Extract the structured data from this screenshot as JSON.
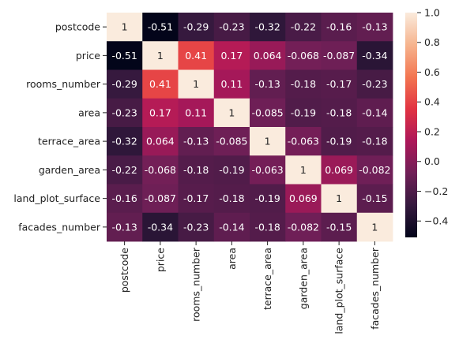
{
  "chart_data": {
    "type": "heatmap",
    "title": "",
    "xlabel": "",
    "ylabel": "",
    "rows": [
      "postcode",
      "price",
      "rooms_number",
      "area",
      "terrace_area",
      "garden_area",
      "land_plot_surface",
      "facades_number"
    ],
    "columns": [
      "postcode",
      "price",
      "rooms_number",
      "area",
      "terrace_area",
      "garden_area",
      "land_plot_surface",
      "facades_number"
    ],
    "values": [
      [
        1,
        -0.51,
        -0.29,
        -0.23,
        -0.32,
        -0.22,
        -0.16,
        -0.13
      ],
      [
        -0.51,
        1,
        0.41,
        0.17,
        0.064,
        -0.068,
        -0.087,
        -0.34
      ],
      [
        -0.29,
        0.41,
        1,
        0.11,
        -0.13,
        -0.18,
        -0.17,
        -0.23
      ],
      [
        -0.23,
        0.17,
        0.11,
        1,
        -0.085,
        -0.19,
        -0.18,
        -0.14
      ],
      [
        -0.32,
        0.064,
        -0.13,
        -0.085,
        1,
        -0.063,
        -0.19,
        -0.18
      ],
      [
        -0.22,
        -0.068,
        -0.18,
        -0.19,
        -0.063,
        1,
        0.069,
        -0.082
      ],
      [
        -0.16,
        -0.087,
        -0.17,
        -0.18,
        -0.19,
        0.069,
        1,
        -0.15
      ],
      [
        -0.13,
        -0.34,
        -0.23,
        -0.14,
        -0.18,
        -0.082,
        -0.15,
        1
      ]
    ],
    "cell_labels": [
      [
        "1",
        "-0.51",
        "-0.29",
        "-0.23",
        "-0.32",
        "-0.22",
        "-0.16",
        "-0.13"
      ],
      [
        "-0.51",
        "1",
        "0.41",
        "0.17",
        "0.064",
        "-0.068",
        "-0.087",
        "-0.34"
      ],
      [
        "-0.29",
        "0.41",
        "1",
        "0.11",
        "-0.13",
        "-0.18",
        "-0.17",
        "-0.23"
      ],
      [
        "-0.23",
        "0.17",
        "0.11",
        "1",
        "-0.085",
        "-0.19",
        "-0.18",
        "-0.14"
      ],
      [
        "-0.32",
        "0.064",
        "-0.13",
        "-0.085",
        "1",
        "-0.063",
        "-0.19",
        "-0.18"
      ],
      [
        "-0.22",
        "-0.068",
        "-0.18",
        "-0.19",
        "-0.063",
        "1",
        "0.069",
        "-0.082"
      ],
      [
        "-0.16",
        "-0.087",
        "-0.17",
        "-0.18",
        "-0.19",
        "0.069",
        "1",
        "-0.15"
      ],
      [
        "-0.13",
        "-0.34",
        "-0.23",
        "-0.14",
        "-0.18",
        "-0.082",
        "-0.15",
        "1"
      ]
    ],
    "colormap": "rocket",
    "colorbar": {
      "vmin": -0.51,
      "vmax": 1.0,
      "ticks": [
        1.0,
        0.8,
        0.6,
        0.4,
        0.2,
        0.0,
        -0.2,
        -0.4
      ],
      "tick_labels": [
        "1.0",
        "0.8",
        "0.6",
        "0.4",
        "0.2",
        "0.0",
        "−0.2",
        "−0.4"
      ],
      "placement": "right"
    },
    "grid": false,
    "legend": "colorbar-right"
  }
}
